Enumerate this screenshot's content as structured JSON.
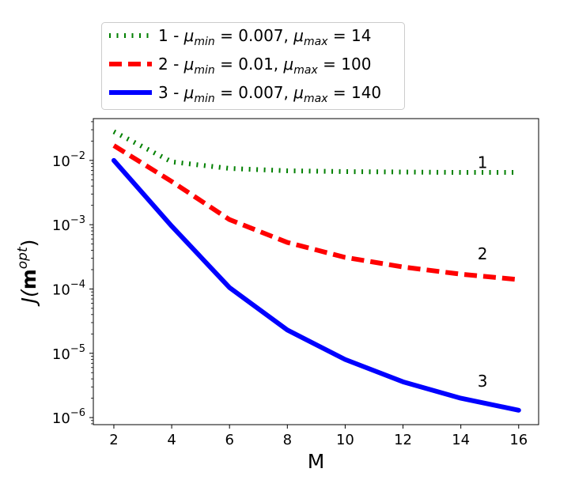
{
  "chart_data": {
    "type": "line",
    "title": "",
    "xlabel": "M",
    "ylabel": {
      "prefix": "J(",
      "bold": "m",
      "sup": "opt",
      "suffix": ")"
    },
    "xlim": [
      1.29,
      16.69
    ],
    "ylim_log10": [
      -6.11,
      -1.35
    ],
    "yscale": "log",
    "xticks": [
      2,
      4,
      6,
      8,
      10,
      12,
      14,
      16
    ],
    "xtick_labels": [
      "2",
      "4",
      "6",
      "8",
      "10",
      "12",
      "14",
      "16"
    ],
    "yticks_exp": [
      -2,
      -3,
      -4,
      -5,
      -6
    ],
    "ytick_base": "10",
    "ytick_exp_labels": [
      "−2",
      "−3",
      "−4",
      "−5",
      "−6"
    ],
    "grid": false,
    "legend_placement": "top-left, above axes",
    "x": [
      2,
      4,
      6,
      8,
      10,
      12,
      14,
      16
    ],
    "series": [
      {
        "name": "1",
        "mu_min": "0.007",
        "mu_max": "14",
        "color": "#008000",
        "style": "dotted",
        "values": [
          0.028,
          0.0095,
          0.0075,
          0.0069,
          0.0067,
          0.0066,
          0.0065,
          0.0065
        ]
      },
      {
        "name": "2",
        "mu_min": "0.01",
        "mu_max": "100",
        "color": "#ff0000",
        "style": "dashed",
        "values": [
          0.017,
          0.0047,
          0.0012,
          0.00053,
          0.00031,
          0.00022,
          0.00017,
          0.00014
        ]
      },
      {
        "name": "3",
        "mu_min": "0.007",
        "mu_max": "140",
        "color": "#0000ff",
        "style": "solid",
        "values": [
          0.01,
          0.00095,
          0.000105,
          2.3e-05,
          8e-06,
          3.6e-06,
          2e-06,
          1.3e-06
        ]
      }
    ],
    "legend_symbols": {
      "mu": "μ",
      "sub_min": "min",
      "sub_max": "max",
      "dash": " - ",
      "eq": " = ",
      "comma": ", "
    },
    "annotations": [
      {
        "text": "1",
        "x": 14.75,
        "y": 0.0093
      },
      {
        "text": "2",
        "x": 14.75,
        "y": 0.00035
      },
      {
        "text": "3",
        "x": 14.75,
        "y": 3.7e-06
      }
    ]
  }
}
